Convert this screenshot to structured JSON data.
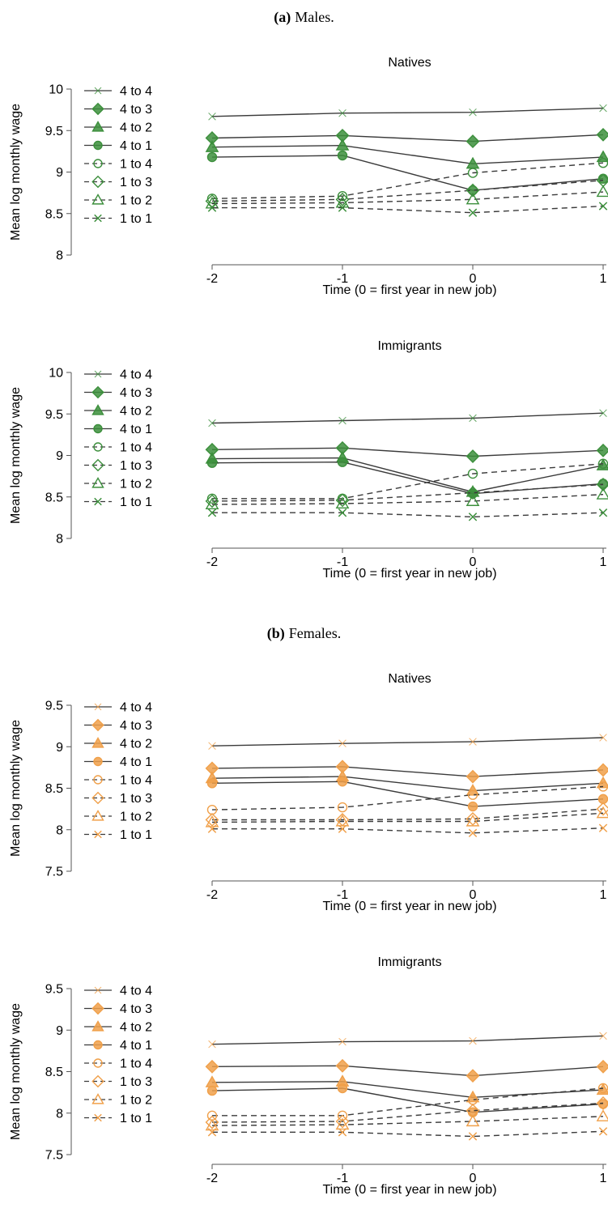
{
  "sections": [
    {
      "label": "(a)",
      "title": "Males."
    },
    {
      "label": "(b)",
      "title": "Females."
    }
  ],
  "colors": {
    "males": "#3c8f3c",
    "females": "#f0a04a",
    "line": "#3a3a3a",
    "axis": "#555555"
  },
  "chart_data": [
    {
      "type": "line",
      "group": "Males",
      "title": "Natives",
      "xlabel": "Time (0 = first year in new job)",
      "ylabel": "Mean log monthly wage",
      "x": [
        -2,
        -1,
        0,
        1
      ],
      "xticks": [
        "-2",
        "-1",
        "0",
        "1"
      ],
      "ylim": [
        8,
        10
      ],
      "yticks": [
        "10",
        "9.5",
        "9",
        "8.5",
        "8"
      ],
      "legend_position": "left",
      "grid": false,
      "series": [
        {
          "name": "4 to 4",
          "marker": "plus",
          "dashed": false,
          "values": [
            9.67,
            9.71,
            9.72,
            9.77
          ]
        },
        {
          "name": "4 to 3",
          "marker": "diamond",
          "dashed": false,
          "values": [
            9.41,
            9.44,
            9.37,
            9.45
          ]
        },
        {
          "name": "4 to 2",
          "marker": "triangle",
          "dashed": false,
          "values": [
            9.3,
            9.32,
            9.1,
            9.18
          ]
        },
        {
          "name": "4 to 1",
          "marker": "circle",
          "dashed": false,
          "values": [
            9.18,
            9.2,
            8.78,
            8.92
          ]
        },
        {
          "name": "1 to 4",
          "marker": "circle-open",
          "dashed": true,
          "values": [
            8.68,
            8.71,
            8.99,
            9.11
          ]
        },
        {
          "name": "1 to 3",
          "marker": "diamond-open",
          "dashed": true,
          "values": [
            8.65,
            8.67,
            8.78,
            8.9
          ]
        },
        {
          "name": "1 to 2",
          "marker": "triangle-open",
          "dashed": true,
          "values": [
            8.62,
            8.63,
            8.67,
            8.76
          ]
        },
        {
          "name": "1 to 1",
          "marker": "x",
          "dashed": true,
          "values": [
            8.57,
            8.57,
            8.51,
            8.59
          ]
        }
      ]
    },
    {
      "type": "line",
      "group": "Males",
      "title": "Immigrants",
      "xlabel": "Time (0 = first year in new job)",
      "ylabel": "Mean log monthly wage",
      "x": [
        -2,
        -1,
        0,
        1
      ],
      "xticks": [
        "-2",
        "-1",
        "0",
        "1"
      ],
      "ylim": [
        8,
        10
      ],
      "yticks": [
        "10",
        "9.5",
        "9",
        "8.5",
        "8"
      ],
      "legend_position": "left",
      "grid": false,
      "series": [
        {
          "name": "4 to 4",
          "marker": "plus",
          "dashed": false,
          "values": [
            9.39,
            9.42,
            9.45,
            9.51
          ]
        },
        {
          "name": "4 to 3",
          "marker": "diamond",
          "dashed": false,
          "values": [
            9.07,
            9.09,
            8.99,
            9.06
          ]
        },
        {
          "name": "4 to 2",
          "marker": "triangle",
          "dashed": false,
          "values": [
            8.96,
            8.97,
            8.56,
            8.88
          ]
        },
        {
          "name": "4 to 1",
          "marker": "circle",
          "dashed": false,
          "values": [
            8.91,
            8.92,
            8.54,
            8.66
          ]
        },
        {
          "name": "1 to 4",
          "marker": "circle-open",
          "dashed": true,
          "values": [
            8.48,
            8.48,
            8.78,
            8.9
          ]
        },
        {
          "name": "1 to 3",
          "marker": "diamond-open",
          "dashed": true,
          "values": [
            8.45,
            8.46,
            8.55,
            8.65
          ]
        },
        {
          "name": "1 to 2",
          "marker": "triangle-open",
          "dashed": true,
          "values": [
            8.41,
            8.42,
            8.45,
            8.53
          ]
        },
        {
          "name": "1 to 1",
          "marker": "x",
          "dashed": true,
          "values": [
            8.31,
            8.31,
            8.26,
            8.31
          ]
        }
      ]
    },
    {
      "type": "line",
      "group": "Females",
      "title": "Natives",
      "xlabel": "Time (0 = first year in new job)",
      "ylabel": "Mean log monthly wage",
      "x": [
        -2,
        -1,
        0,
        1
      ],
      "xticks": [
        "-2",
        "-1",
        "0",
        "1"
      ],
      "ylim": [
        7.5,
        9.5
      ],
      "yticks": [
        "9.5",
        "9",
        "8.5",
        "8",
        "7.5"
      ],
      "legend_position": "left",
      "grid": false,
      "series": [
        {
          "name": "4 to 4",
          "marker": "plus",
          "dashed": false,
          "values": [
            9.01,
            9.04,
            9.06,
            9.11
          ]
        },
        {
          "name": "4 to 3",
          "marker": "diamond",
          "dashed": false,
          "values": [
            8.74,
            8.76,
            8.64,
            8.72
          ]
        },
        {
          "name": "4 to 2",
          "marker": "triangle",
          "dashed": false,
          "values": [
            8.62,
            8.64,
            8.47,
            8.56
          ]
        },
        {
          "name": "4 to 1",
          "marker": "circle",
          "dashed": false,
          "values": [
            8.56,
            8.58,
            8.28,
            8.37
          ]
        },
        {
          "name": "1 to 4",
          "marker": "circle-open",
          "dashed": true,
          "values": [
            8.24,
            8.27,
            8.42,
            8.52
          ]
        },
        {
          "name": "1 to 3",
          "marker": "diamond-open",
          "dashed": true,
          "values": [
            8.12,
            8.12,
            8.13,
            8.25
          ]
        },
        {
          "name": "1 to 2",
          "marker": "triangle-open",
          "dashed": true,
          "values": [
            8.09,
            8.1,
            8.1,
            8.2
          ]
        },
        {
          "name": "1 to 1",
          "marker": "x",
          "dashed": true,
          "values": [
            8.01,
            8.01,
            7.96,
            8.02
          ]
        }
      ]
    },
    {
      "type": "line",
      "group": "Females",
      "title": "Immigrants",
      "xlabel": "Time (0 = first year in new job)",
      "ylabel": "Mean log monthly wage",
      "x": [
        -2,
        -1,
        0,
        1
      ],
      "xticks": [
        "-2",
        "-1",
        "0",
        "1"
      ],
      "ylim": [
        7.5,
        9.5
      ],
      "yticks": [
        "9.5",
        "9",
        "8.5",
        "8",
        "7.5"
      ],
      "legend_position": "left",
      "grid": false,
      "series": [
        {
          "name": "4 to 4",
          "marker": "plus",
          "dashed": false,
          "values": [
            8.83,
            8.86,
            8.87,
            8.93
          ]
        },
        {
          "name": "4 to 3",
          "marker": "diamond",
          "dashed": false,
          "values": [
            8.56,
            8.57,
            8.45,
            8.56
          ]
        },
        {
          "name": "4 to 2",
          "marker": "triangle",
          "dashed": false,
          "values": [
            8.37,
            8.38,
            8.19,
            8.28
          ]
        },
        {
          "name": "4 to 1",
          "marker": "circle",
          "dashed": false,
          "values": [
            8.27,
            8.3,
            8.01,
            8.11
          ]
        },
        {
          "name": "1 to 4",
          "marker": "circle-open",
          "dashed": true,
          "values": [
            7.97,
            7.97,
            8.16,
            8.3
          ]
        },
        {
          "name": "1 to 3",
          "marker": "diamond-open",
          "dashed": true,
          "values": [
            7.89,
            7.9,
            8.03,
            8.12
          ]
        },
        {
          "name": "1 to 2",
          "marker": "triangle-open",
          "dashed": true,
          "values": [
            7.85,
            7.86,
            7.9,
            7.96
          ]
        },
        {
          "name": "1 to 1",
          "marker": "x",
          "dashed": true,
          "values": [
            7.77,
            7.77,
            7.72,
            7.78
          ]
        }
      ]
    }
  ]
}
